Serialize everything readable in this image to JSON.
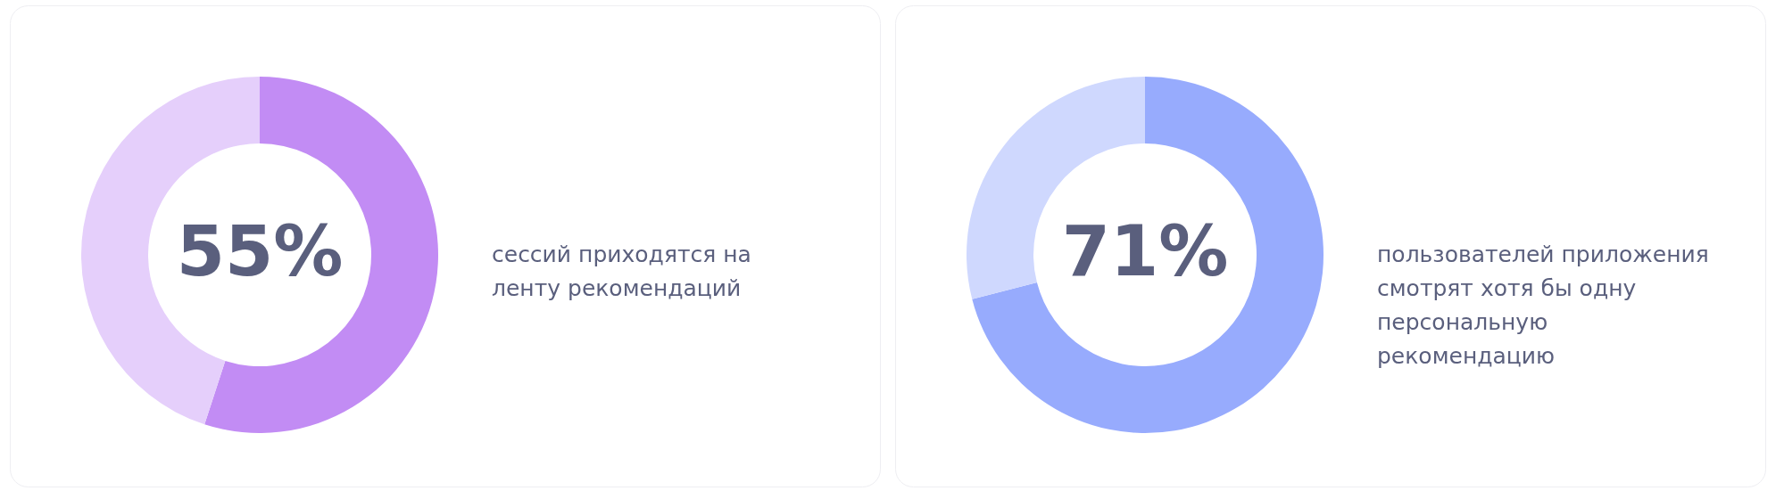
{
  "chart_data": [
    {
      "type": "donut",
      "categories": [
        null,
        null
      ],
      "values": [
        55,
        45
      ],
      "colors": [
        "#c28cf4",
        "#e5cffb"
      ],
      "value_labels": [
        "55%",
        null
      ],
      "annotations": [
        "сессий приходятся на ленту рекомендаций"
      ]
    },
    {
      "type": "donut",
      "categories": [
        null,
        null
      ],
      "values": [
        71,
        29
      ],
      "colors": [
        "#97abfd",
        "#cfd8fe"
      ],
      "value_labels": [
        "71%",
        null
      ],
      "annotations": [
        "пользователей приложения смотрят хотя бы одну персональную рекомендацию"
      ]
    }
  ]
}
